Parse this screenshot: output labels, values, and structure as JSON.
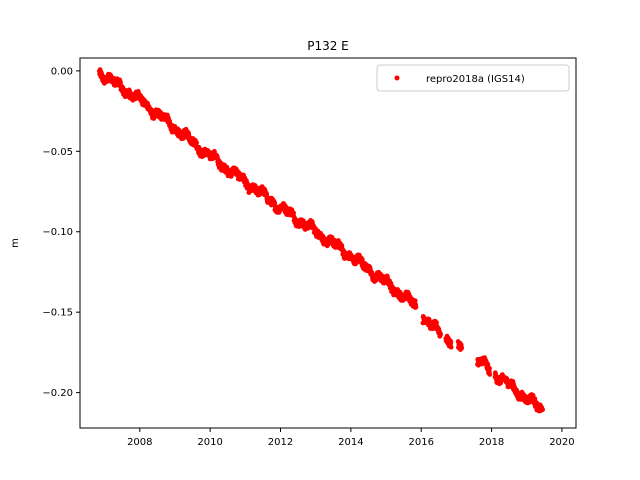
{
  "chart_data": {
    "type": "scatter",
    "title": "P132 E",
    "xlabel": "",
    "ylabel": "m",
    "xlim": [
      2006.3,
      2020.4
    ],
    "ylim": [
      -0.222,
      0.008
    ],
    "x_ticks": [
      2008,
      2010,
      2012,
      2014,
      2016,
      2018,
      2020
    ],
    "x_tick_labels": [
      "2008",
      "2010",
      "2012",
      "2014",
      "2016",
      "2018",
      "2020"
    ],
    "y_ticks": [
      0.0,
      -0.05,
      -0.1,
      -0.15,
      -0.2
    ],
    "y_tick_labels": [
      "0.00",
      "−0.05",
      "−0.10",
      "−0.15",
      "−0.20"
    ],
    "grid": false,
    "legend_position": "top-right",
    "series": [
      {
        "name": "repro2018a (IGS14)",
        "color": "#ff0000",
        "marker": "circle",
        "segments": [
          {
            "x_start": 2006.85,
            "x_end": 2015.85
          },
          {
            "x_start": 2016.05,
            "x_end": 2016.55
          },
          {
            "x_start": 2016.7,
            "x_end": 2016.85
          },
          {
            "x_start": 2017.05,
            "x_end": 2017.15
          },
          {
            "x_start": 2017.6,
            "x_end": 2017.95
          },
          {
            "x_start": 2018.1,
            "x_end": 2019.45
          }
        ],
        "trend_points": [
          {
            "x": 2006.85,
            "y": -0.001
          },
          {
            "x": 2008.0,
            "y": -0.018
          },
          {
            "x": 2010.0,
            "y": -0.053
          },
          {
            "x": 2012.0,
            "y": -0.085
          },
          {
            "x": 2014.0,
            "y": -0.115
          },
          {
            "x": 2015.8,
            "y": -0.145
          },
          {
            "x": 2016.3,
            "y": -0.159
          },
          {
            "x": 2016.8,
            "y": -0.167
          },
          {
            "x": 2017.1,
            "y": -0.172
          },
          {
            "x": 2017.8,
            "y": -0.183
          },
          {
            "x": 2018.3,
            "y": -0.192
          },
          {
            "x": 2019.45,
            "y": -0.211
          }
        ]
      }
    ]
  }
}
